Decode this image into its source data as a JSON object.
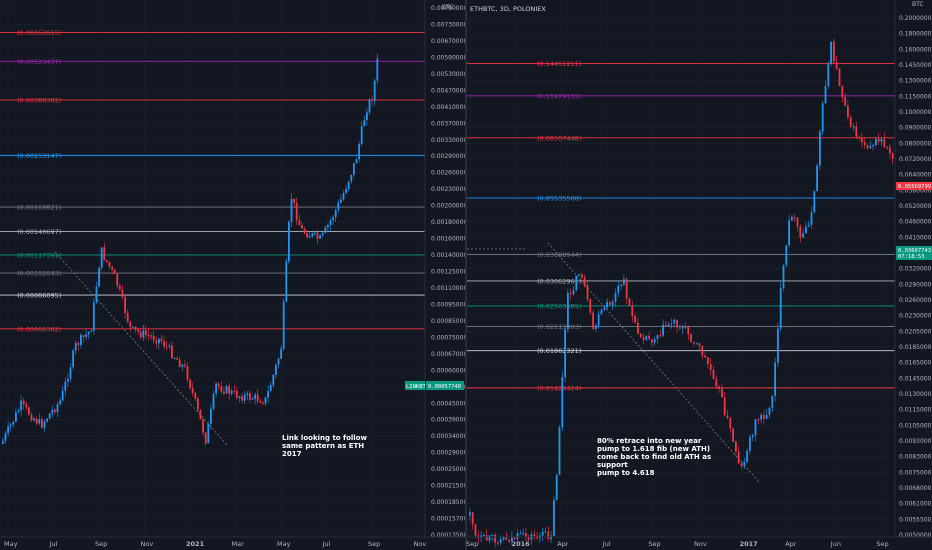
{
  "chart_data": [
    {
      "type": "candlestick",
      "title": "",
      "unit_label": "BTC",
      "y_axis_ticks": [
        "0.00790000",
        "0.00730000",
        "0.00670000",
        "0.00590000",
        "0.00530000",
        "0.00470000",
        "0.00410000",
        "0.00370000",
        "0.00330000",
        "0.00290000",
        "0.00260000",
        "0.00230000",
        "0.00200000",
        "0.00180000",
        "0.00160000",
        "0.00140000",
        "0.00125000",
        "0.00110000",
        "0.00095000",
        "0.00085000",
        "0.00075000",
        "0.00067000",
        "0.00060000",
        "0.00051000",
        "0.00045000",
        "0.00039000",
        "0.00034000",
        "0.00029000",
        "0.00025000",
        "0.00021500",
        "0.00018500",
        "0.00015700",
        "0.00013500"
      ],
      "x_ticks": [
        {
          "label": "May",
          "bold": false
        },
        {
          "label": "Jul",
          "bold": false
        },
        {
          "label": "Sep",
          "bold": false
        },
        {
          "label": "Nov",
          "bold": false
        },
        {
          "label": "2021",
          "bold": true
        },
        {
          "label": "Mar",
          "bold": false
        },
        {
          "label": "May",
          "bold": false
        },
        {
          "label": "Jul",
          "bold": false
        },
        {
          "label": "Sep",
          "bold": false
        },
        {
          "label": "Nov",
          "bold": false
        }
      ],
      "fib_levels": [
        {
          "label": "(0.00653615)",
          "value": 0.00653615,
          "color": "#f23645"
        },
        {
          "label": "(0.00523437)",
          "value": 0.00523437,
          "color": "#9c27b0"
        },
        {
          "label": "(0.00388302)",
          "value": 0.00388302,
          "color": "#f23645"
        },
        {
          "label": "(0.00253147)",
          "value": 0.00253147,
          "color": "#2196f3"
        },
        {
          "label": "(0.00169821)",
          "value": 0.00169821,
          "color": "#787b86"
        },
        {
          "label": "(0.00140697)",
          "value": 0.00140697,
          "color": "#b2b5be"
        },
        {
          "label": "(0.00117391)",
          "value": 0.00117391,
          "color": "#089981"
        },
        {
          "label": "(0.00102043)",
          "value": 0.00102043,
          "color": "#787b86"
        },
        {
          "label": "(0.00086095)",
          "value": 0.00086095,
          "color": "#d1d4dc"
        },
        {
          "label": "(0.00066362)",
          "value": 0.00066362,
          "color": "#f23645"
        }
      ],
      "last_price": {
        "label": "LINKBTC",
        "value_text": "0.00057740"
      },
      "annotation": [
        "Link looking to follow",
        "same pattern as ETH",
        "2017"
      ],
      "color_up": "#2196f3",
      "color_down": "#f23645"
    },
    {
      "type": "candlestick",
      "title": "ETHBTC, 3D, POLONIEX",
      "unit_label": "BTC",
      "y_axis_ticks": [
        "0.20000000",
        "0.18000000",
        "0.16000000",
        "0.14500000",
        "0.13000000",
        "0.11500000",
        "0.10000000",
        "0.09000000",
        "0.08000000",
        "0.07200000",
        "0.06400000",
        "0.05800000",
        "0.05200000",
        "0.04600000",
        "0.04100000",
        "0.03600000",
        "0.03200000",
        "0.02900000",
        "0.02600000",
        "0.02300000",
        "0.02050000",
        "0.01850000",
        "0.01650000",
        "0.01450000",
        "0.01300000",
        "0.01150000",
        "0.01050000",
        "0.00930000",
        "0.00830000",
        "0.00750000",
        "0.00680000",
        "0.00610000",
        "0.00555000",
        "0.00500000"
      ],
      "x_ticks": [
        {
          "label": "Sep",
          "bold": false
        },
        {
          "label": "2016",
          "bold": true
        },
        {
          "label": "Apr",
          "bold": false
        },
        {
          "label": "Jul",
          "bold": false
        },
        {
          "label": "Sep",
          "bold": false
        },
        {
          "label": "Nov",
          "bold": false
        },
        {
          "label": "2017",
          "bold": true
        },
        {
          "label": "Apr",
          "bold": false
        },
        {
          "label": "Jun",
          "bold": false
        },
        {
          "label": "Sep",
          "bold": false
        }
      ],
      "fib_levels": [
        {
          "label": "(0.14451211)",
          "value": 0.14451211,
          "color": "#f23645"
        },
        {
          "label": "(0.11479135)",
          "value": 0.11479135,
          "color": "#9c27b0"
        },
        {
          "label": "(0.08507448)",
          "value": 0.08507448,
          "color": "#f23645"
        },
        {
          "label": "(0.05535568)",
          "value": 0.05535568,
          "color": "#2196f3"
        },
        {
          "label": "(0.03698944)",
          "value": 0.03698944,
          "color": "#787b86"
        },
        {
          "label": "(0.03062961)",
          "value": 0.03062961,
          "color": "#b2b5be"
        },
        {
          "label": "(0.02563685)",
          "value": 0.02563685,
          "color": "#089981"
        },
        {
          "label": "(0.02213003)",
          "value": 0.02213003,
          "color": "#787b86"
        },
        {
          "label": "(0.01862321)",
          "value": 0.01862321,
          "color": "#d1d4dc"
        },
        {
          "label": "(0.01428424)",
          "value": 0.01428424,
          "color": "#f23645"
        }
      ],
      "price_flags": [
        {
          "value_text": "0.05569799",
          "sub": "",
          "color": "#f23645"
        },
        {
          "value_text": "0.03607743",
          "sub": "07:18:53",
          "color": "#089981"
        }
      ],
      "annotation": [
        "80% retrace into new year",
        "pump to 1.618 fib (new ATH)",
        "come back to find old ATH as",
        "support",
        "pump to 4.618"
      ],
      "color_up": "#2196f3",
      "color_down": "#f23645"
    }
  ]
}
